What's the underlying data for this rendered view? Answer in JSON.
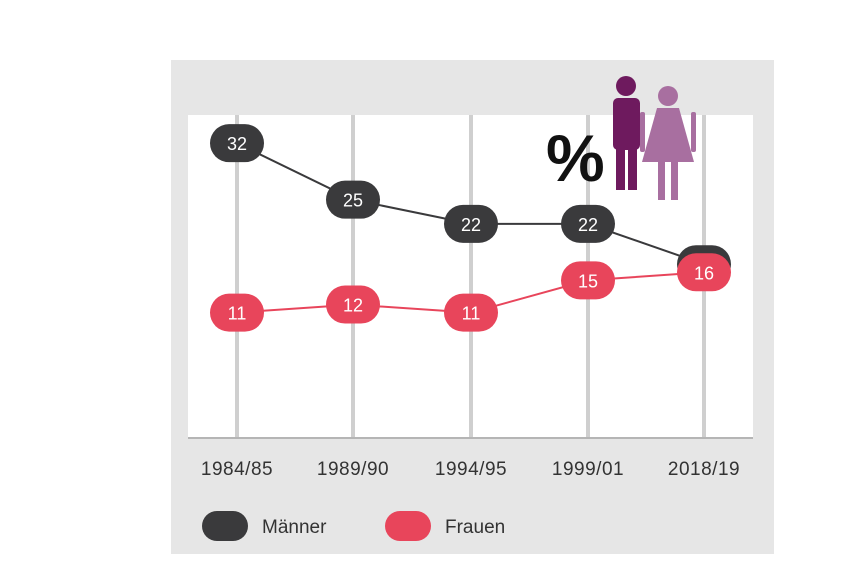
{
  "chart_data": {
    "type": "line",
    "unit": "%",
    "categories": [
      "1984/85",
      "1989/90",
      "1994/95",
      "1999/01",
      "2018/19"
    ],
    "ylim": [
      0,
      40
    ],
    "series": [
      {
        "name": "Männer",
        "values": [
          32,
          25,
          22,
          22,
          17
        ],
        "color": "#3a3a3c"
      },
      {
        "name": "Frauen",
        "values": [
          11,
          12,
          11,
          15,
          16
        ],
        "color": "#e8455b"
      }
    ],
    "legend": {
      "placement": "bottom-left"
    },
    "grid": {
      "vertical": true
    },
    "icon": {
      "name": "man-woman-icon",
      "man_color": "#6e1a5e",
      "woman_color": "#a86fa0"
    }
  }
}
